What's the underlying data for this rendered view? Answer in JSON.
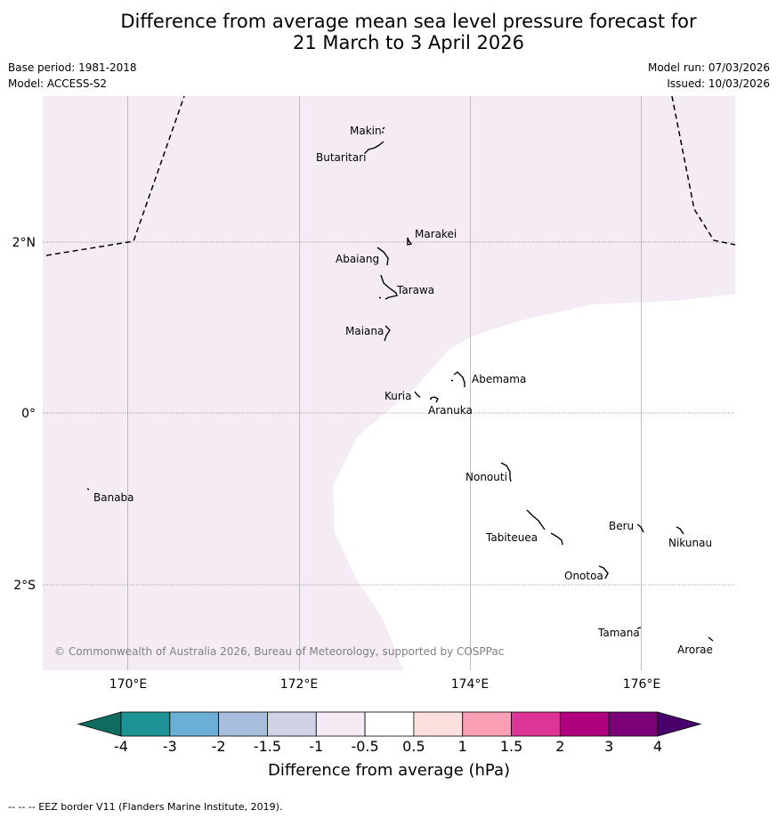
{
  "header": {
    "title_line1": "Difference from average mean sea level pressure forecast for",
    "title_line2": "21 March to 3 April 2026",
    "base_period": "Base period: 1981-2018",
    "model": "Model: ACCESS-S2",
    "model_run": "Model run: 07/03/2026",
    "issued": "Issued: 10/03/2026"
  },
  "map": {
    "lon_labels": [
      "170°E",
      "172°E",
      "174°E",
      "176°E"
    ],
    "lat_labels": [
      "2°N",
      "0°",
      "2°S"
    ],
    "places": [
      {
        "name": "Makin"
      },
      {
        "name": "Butaritari"
      },
      {
        "name": "Marakei"
      },
      {
        "name": "Abaiang"
      },
      {
        "name": "Tarawa"
      },
      {
        "name": "Maiana"
      },
      {
        "name": "Abemama"
      },
      {
        "name": "Kuria"
      },
      {
        "name": "Aranuka"
      },
      {
        "name": "Banaba"
      },
      {
        "name": "Nonouti"
      },
      {
        "name": "Tabiteuea"
      },
      {
        "name": "Beru"
      },
      {
        "name": "Nikunau"
      },
      {
        "name": "Onotoa"
      },
      {
        "name": "Tamana"
      },
      {
        "name": "Arorae"
      }
    ],
    "copyright": "© Commonwealth of Australia 2026, Bureau of Meteorology, supported by COSPPac"
  },
  "colorbar": {
    "title": "Difference from average (hPa)",
    "ticks": [
      "-4",
      "-3",
      "-2",
      "-1.5",
      "-1",
      "-0.5",
      "0.5",
      "1",
      "1.5",
      "2",
      "3",
      "4"
    ],
    "colors": {
      "low_extend": "#0d6b60",
      "bins": [
        "#1e9396",
        "#6baed6",
        "#a8bedd",
        "#d1d2e6",
        "#f4ebf4",
        "#ffffff",
        "#fde0dd",
        "#fa9fb5",
        "#dd3497",
        "#ae017e",
        "#7a0177"
      ],
      "high_extend": "#49006a"
    }
  },
  "footer": {
    "eez_note": "--  --  -- EEZ border V11 (Flanders Marine Institute, 2019)."
  }
}
